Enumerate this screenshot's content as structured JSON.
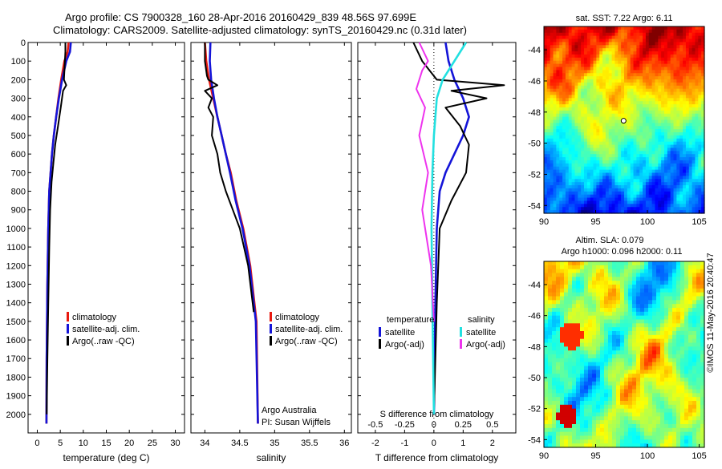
{
  "titles": {
    "line1": "Argo profile: CS 7900328_160 28-Apr-2016 20160429_839 48.56S 97.699E",
    "line2": "Climatology: CARS2009. Satellite-adjusted climatology: synTS_20160429.nc (0.31d later)"
  },
  "credit": "©IMOS 11-May-2016 20:40:47",
  "depth_ticks": [
    "0",
    "100",
    "200",
    "300",
    "400",
    "500",
    "600",
    "700",
    "800",
    "900",
    "1000",
    "1100",
    "1200",
    "1300",
    "1400",
    "1500",
    "1600",
    "1700",
    "1800",
    "1900",
    "2000"
  ],
  "colors": {
    "climatology": "#e8190f",
    "satellite": "#1414d8",
    "argo": "#000000",
    "salinity_sat": "#22e0e0",
    "salinity_argo": "#ee33ee"
  },
  "chart_data": [
    {
      "type": "line",
      "panel": "temperature",
      "xlabel": "temperature (deg C)",
      "xticks": [
        "0",
        "5",
        "10",
        "15",
        "20",
        "25",
        "30"
      ],
      "xlim": [
        -2,
        32
      ],
      "ylim": [
        2100,
        0
      ],
      "legend": [
        "climatology",
        "satellite-adj. clim.",
        "Argo(..raw -QC)"
      ],
      "series": [
        {
          "name": "climatology",
          "x": [
            6.8,
            6.6,
            5.9,
            5.2,
            4.6,
            4.1,
            3.6,
            3.2,
            2.9,
            2.6,
            2.4,
            2.2,
            2.05,
            2.0
          ],
          "y": [
            0,
            50,
            100,
            200,
            300,
            400,
            500,
            600,
            700,
            800,
            1000,
            1300,
            1700,
            2050
          ]
        },
        {
          "name": "satellite-adj. clim.",
          "x": [
            7.3,
            7.1,
            6.3,
            5.4,
            4.7,
            4.1,
            3.6,
            3.2,
            2.9,
            2.6,
            2.4,
            2.2,
            2.05,
            2.0
          ],
          "y": [
            0,
            50,
            100,
            200,
            300,
            400,
            500,
            600,
            700,
            800,
            1000,
            1300,
            1700,
            2050
          ]
        },
        {
          "name": "Argo(..raw -QC)",
          "x": [
            6.1,
            6.1,
            6.0,
            5.8,
            6.3,
            5.6,
            5.1,
            4.5,
            3.9,
            3.5,
            3.1,
            2.8,
            2.6,
            2.4,
            2.2,
            2.05
          ],
          "y": [
            0,
            50,
            100,
            200,
            230,
            260,
            350,
            450,
            550,
            650,
            750,
            900,
            1100,
            1400,
            1700,
            2000
          ]
        }
      ]
    },
    {
      "type": "line",
      "panel": "salinity",
      "xlabel": "salinity",
      "xticks": [
        "34",
        "34.5",
        "35",
        "35.5",
        "36"
      ],
      "xlim": [
        33.8,
        36.1
      ],
      "ylim": [
        2100,
        0
      ],
      "legend": [
        "climatology",
        "satellite-adj. clim.",
        "Argo(..raw -QC)"
      ],
      "annotation": [
        "Argo Australia",
        "PI: Susan Wijffels"
      ],
      "series": [
        {
          "name": "climatology",
          "x": [
            34.0,
            34.02,
            34.06,
            34.12,
            34.18,
            34.24,
            34.3,
            34.37,
            34.45,
            34.55,
            34.65,
            34.74,
            34.76
          ],
          "y": [
            0,
            100,
            200,
            300,
            400,
            500,
            600,
            700,
            850,
            1000,
            1200,
            1500,
            2050
          ]
        },
        {
          "name": "satellite-adj. clim.",
          "x": [
            34.08,
            34.07,
            34.09,
            34.13,
            34.18,
            34.24,
            34.3,
            34.36,
            34.44,
            34.54,
            34.64,
            34.73,
            34.76
          ],
          "y": [
            0,
            100,
            200,
            300,
            400,
            500,
            600,
            700,
            850,
            1000,
            1200,
            1500,
            2050
          ]
        },
        {
          "name": "Argo(..raw -QC)",
          "x": [
            34.0,
            34.0,
            34.03,
            34.05,
            34.18,
            34.0,
            34.1,
            34.05,
            34.12,
            34.1,
            34.18,
            34.22,
            34.3,
            34.4,
            34.5,
            34.62,
            34.7
          ],
          "y": [
            0,
            100,
            180,
            200,
            230,
            260,
            300,
            350,
            400,
            500,
            600,
            700,
            800,
            900,
            1000,
            1200,
            1450
          ]
        }
      ]
    },
    {
      "type": "line",
      "panel": "difference",
      "xlabel": "T difference from climatology",
      "xticks": [
        "-2",
        "-1",
        "0",
        "1",
        "2"
      ],
      "xlim": [
        -2.6,
        2.8
      ],
      "xlabel_top": "S difference from climatology",
      "xticks_top": [
        "-0.5",
        "-0.25",
        "0",
        "0.25",
        "0.5"
      ],
      "ylim": [
        2100,
        0
      ],
      "legend_headers": [
        "temperature",
        "salinity"
      ],
      "legend": [
        "satellite",
        "Argo(-adj)",
        "satellite",
        "Argo(-adj)"
      ],
      "series": [
        {
          "name": "satellite",
          "quantity": "temperature",
          "x": [
            0.4,
            0.5,
            0.7,
            1.0,
            1.2,
            1.0,
            0.7,
            0.4,
            0.2,
            0.1,
            0.05,
            0.0
          ],
          "y": [
            0,
            100,
            200,
            300,
            400,
            500,
            600,
            700,
            800,
            1000,
            1400,
            2000
          ]
        },
        {
          "name": "Argo(-adj)",
          "quantity": "temperature",
          "x": [
            -0.7,
            -0.4,
            0.1,
            2.4,
            0.6,
            1.8,
            0.4,
            0.9,
            1.2,
            1.1,
            0.6,
            0.2,
            0.1,
            0.0
          ],
          "y": [
            0,
            100,
            200,
            230,
            260,
            300,
            350,
            450,
            550,
            700,
            850,
            1000,
            1400,
            2000
          ]
        },
        {
          "name": "satellite",
          "quantity": "salinity",
          "x": [
            1.1,
            0.7,
            0.3,
            0.1,
            0.05,
            0.0,
            -0.05,
            -0.08,
            -0.05,
            0.0
          ],
          "y": [
            0,
            100,
            200,
            300,
            400,
            500,
            700,
            1000,
            1400,
            2000
          ]
        },
        {
          "name": "Argo(-adj)",
          "quantity": "salinity",
          "x": [
            -0.5,
            -0.2,
            -0.4,
            -0.6,
            -0.3,
            -0.5,
            -0.2,
            -0.4,
            -0.1,
            0.0
          ],
          "y": [
            0,
            100,
            150,
            250,
            350,
            500,
            700,
            900,
            1200,
            1500
          ]
        }
      ]
    },
    {
      "type": "heatmap",
      "panel": "sst-map",
      "title": "sat. SST: 7.22  Argo: 6.11",
      "xticks": [
        "90",
        "95",
        "100",
        "105"
      ],
      "xlim": [
        90,
        105.5
      ],
      "yticks": [
        "-44",
        "-46",
        "-48",
        "-50",
        "-52",
        "-54"
      ],
      "ylim": [
        -54.5,
        -42.5
      ],
      "marker": {
        "lon": 97.699,
        "lat": -48.56
      }
    },
    {
      "type": "heatmap",
      "panel": "sla-map",
      "title": "Altim. SLA: 0.079",
      "subtitle": "Argo h1000: 0.096 h2000: 0.11",
      "xticks": [
        "90",
        "95",
        "100",
        "105"
      ],
      "xlim": [
        90,
        105.5
      ],
      "yticks": [
        "-44",
        "-46",
        "-48",
        "-50",
        "-52",
        "-54"
      ],
      "ylim": [
        -54.5,
        -42.5
      ]
    }
  ]
}
